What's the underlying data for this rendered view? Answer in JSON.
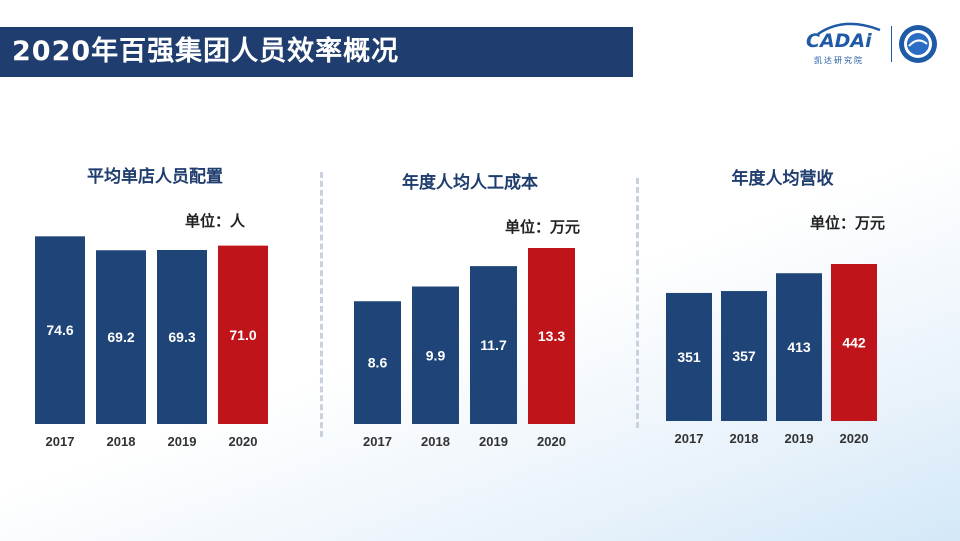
{
  "header": {
    "title": "2020年百强集团人员效率概况"
  },
  "logo": {
    "brand": "CADAi",
    "sub": "凯达研究院"
  },
  "colors": {
    "bar_default": "#1f4478",
    "bar_highlight": "#c0141b",
    "title_bar": "#1f3d6e"
  },
  "chart_data": [
    {
      "type": "bar",
      "title": "平均单店人员配置",
      "unit": "单位：人",
      "categories": [
        "2017",
        "2018",
        "2019",
        "2020"
      ],
      "values": [
        74.6,
        69.2,
        69.3,
        71.0
      ],
      "value_labels": [
        "74.6",
        "69.2",
        "69.3",
        "71.0"
      ],
      "highlight_index": 3,
      "ylim": [
        0,
        75.5
      ],
      "baseline_ratio": 0.74
    },
    {
      "type": "bar",
      "title": "年度人均人工成本",
      "unit": "单位：万元",
      "categories": [
        "2017",
        "2018",
        "2019",
        "2020"
      ],
      "values": [
        8.6,
        9.9,
        11.7,
        13.3
      ],
      "value_labels": [
        "8.6",
        "9.9",
        "11.7",
        "13.3"
      ],
      "highlight_index": 3,
      "ylim": [
        0,
        13.3
      ]
    },
    {
      "type": "bar",
      "title": "年度人均营收",
      "unit": "单位：万元",
      "categories": [
        "2017",
        "2018",
        "2019",
        "2020"
      ],
      "values": [
        351,
        357,
        413,
        442
      ],
      "value_labels": [
        "351",
        "357",
        "413",
        "442"
      ],
      "highlight_index": 3,
      "ylim": [
        0,
        442
      ]
    }
  ]
}
